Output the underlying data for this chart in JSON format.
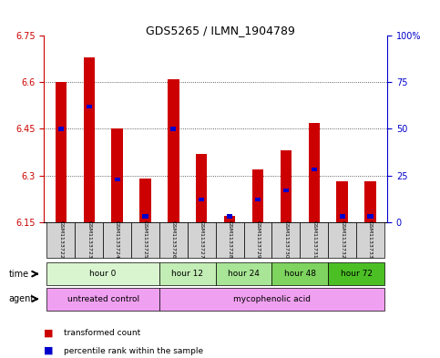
{
  "title": "GDS5265 / ILMN_1904789",
  "samples": [
    "GSM1133722",
    "GSM1133723",
    "GSM1133724",
    "GSM1133725",
    "GSM1133726",
    "GSM1133727",
    "GSM1133728",
    "GSM1133729",
    "GSM1133730",
    "GSM1133731",
    "GSM1133732",
    "GSM1133733"
  ],
  "transformed_count": [
    6.6,
    6.68,
    6.45,
    6.29,
    6.61,
    6.37,
    6.17,
    6.32,
    6.38,
    6.47,
    6.28,
    6.28
  ],
  "percentile_rank": [
    50,
    62,
    23,
    3,
    50,
    12,
    3,
    12,
    17,
    28,
    3,
    3
  ],
  "ylim_left": [
    6.15,
    6.75
  ],
  "ylim_right": [
    0,
    100
  ],
  "yticks_left": [
    6.15,
    6.3,
    6.45,
    6.6,
    6.75
  ],
  "yticks_right": [
    0,
    25,
    50,
    75,
    100
  ],
  "ytick_labels_left": [
    "6.15",
    "6.3",
    "6.45",
    "6.6",
    "6.75"
  ],
  "ytick_labels_right": [
    "0",
    "25",
    "50",
    "75",
    "100%"
  ],
  "left_axis_color": "#cc0000",
  "right_axis_color": "#0000cc",
  "bar_color_red": "#cc0000",
  "bar_color_blue": "#0000cc",
  "base_value": 6.15,
  "time_groups": [
    {
      "label": "hour 0",
      "start": 0,
      "end": 4,
      "color": "#d9f5d0"
    },
    {
      "label": "hour 12",
      "start": 4,
      "end": 6,
      "color": "#c2edb5"
    },
    {
      "label": "hour 24",
      "start": 6,
      "end": 8,
      "color": "#a8e596"
    },
    {
      "label": "hour 48",
      "start": 8,
      "end": 10,
      "color": "#7ed45f"
    },
    {
      "label": "hour 72",
      "start": 10,
      "end": 12,
      "color": "#4cbf25"
    }
  ],
  "agent_groups": [
    {
      "label": "untreated control",
      "start": 0,
      "end": 4,
      "color": "#f0a0f0"
    },
    {
      "label": "mycophenolic acid",
      "start": 4,
      "end": 12,
      "color": "#f0a0f0"
    }
  ],
  "grid_color": "#333333",
  "bg_color": "#ffffff",
  "plot_bg": "#ffffff",
  "legend_items": [
    {
      "color": "#cc0000",
      "label": "transformed count"
    },
    {
      "color": "#0000cc",
      "label": "percentile rank within the sample"
    }
  ]
}
